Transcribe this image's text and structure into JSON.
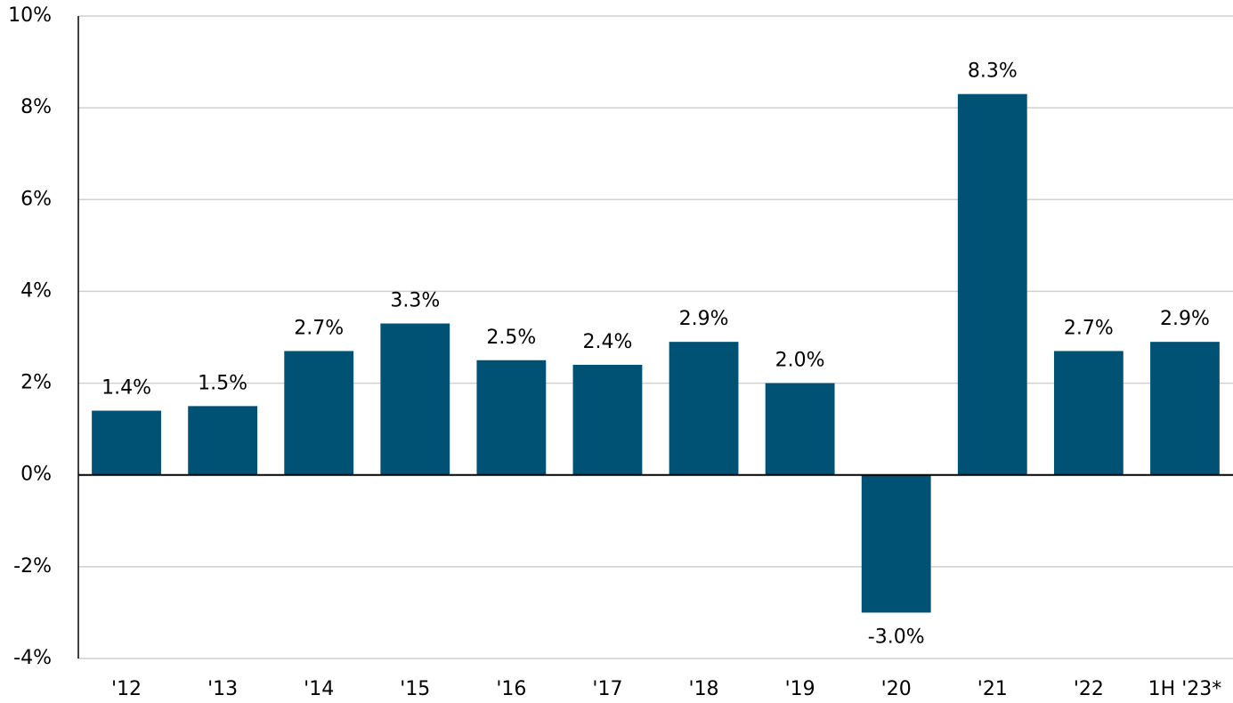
{
  "chart_data": {
    "type": "bar",
    "categories": [
      "'12",
      "'13",
      "'14",
      "'15",
      "'16",
      "'17",
      "'18",
      "'19",
      "'20",
      "'21",
      "'22",
      "1H '23*"
    ],
    "values": [
      1.4,
      1.5,
      2.7,
      3.3,
      2.5,
      2.4,
      2.9,
      2.0,
      -3.0,
      8.3,
      2.7,
      2.9
    ],
    "value_labels": [
      "1.4%",
      "1.5%",
      "2.7%",
      "3.3%",
      "2.5%",
      "2.4%",
      "2.9%",
      "2.0%",
      "-3.0%",
      "8.3%",
      "2.7%",
      "2.9%"
    ],
    "color": "#005275",
    "ylim": [
      -4,
      10
    ],
    "yticks": [
      {
        "value": -4,
        "label": "-4%"
      },
      {
        "value": -2,
        "label": "-2%"
      },
      {
        "value": 0,
        "label": "0%"
      },
      {
        "value": 2,
        "label": "2%"
      },
      {
        "value": 4,
        "label": "4%"
      },
      {
        "value": 6,
        "label": "6%"
      },
      {
        "value": 8,
        "label": "8%"
      },
      {
        "value": 10,
        "label": "10%"
      }
    ],
    "grid": true
  }
}
